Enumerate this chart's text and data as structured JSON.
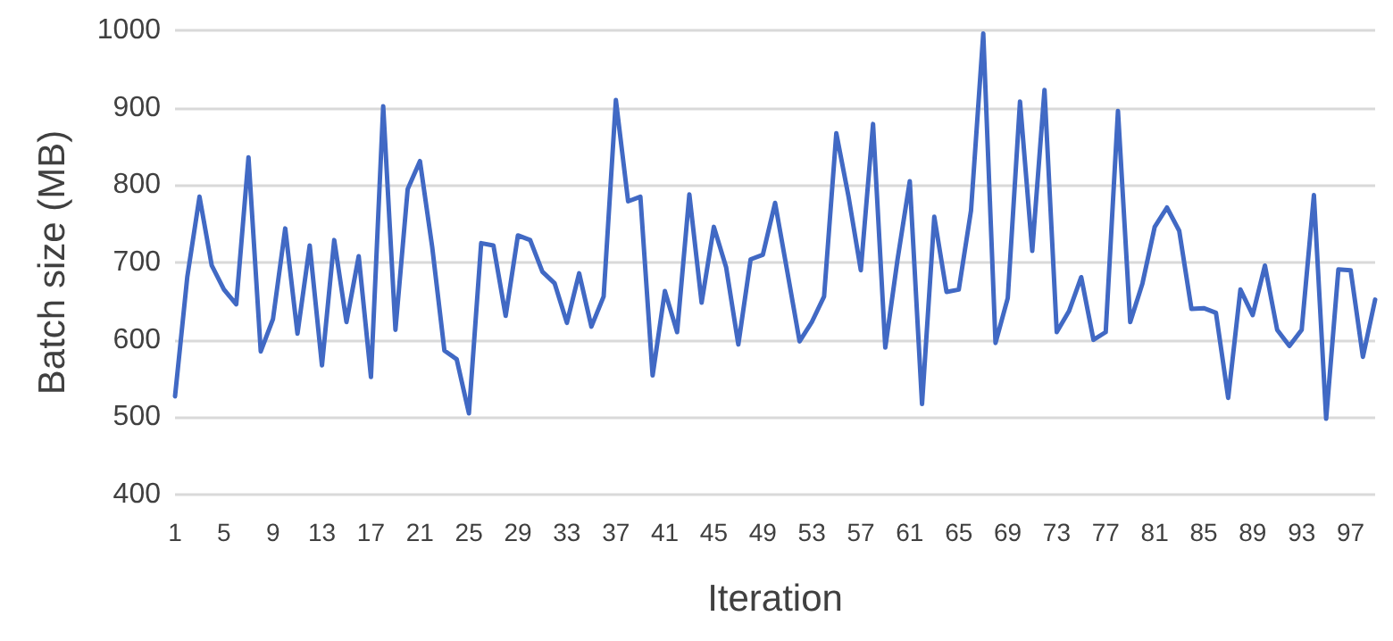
{
  "chart_data": {
    "type": "line",
    "xlabel": "Iteration",
    "ylabel": "Batch size (MB)",
    "categories": [
      "1",
      null,
      null,
      null,
      "5",
      null,
      null,
      null,
      "9",
      null,
      null,
      null,
      "13",
      null,
      null,
      null,
      "17",
      null,
      null,
      null,
      "21",
      null,
      null,
      null,
      "25",
      null,
      null,
      null,
      "29",
      null,
      null,
      null,
      "33",
      null,
      null,
      null,
      "37",
      null,
      null,
      null,
      "41",
      null,
      null,
      null,
      "45",
      null,
      null,
      null,
      "49",
      null,
      null,
      null,
      "53",
      null,
      null,
      null,
      "57",
      null,
      null,
      null,
      "61",
      null,
      null,
      null,
      "65",
      null,
      null,
      null,
      "69",
      null,
      null,
      null,
      "73",
      null,
      null,
      null,
      "77",
      null,
      null,
      null,
      "81",
      null,
      null,
      null,
      "85",
      null,
      null,
      null,
      "89",
      null,
      null,
      null,
      "93",
      null,
      null,
      null,
      "97",
      null,
      null
    ],
    "series": [
      {
        "color": "#4169c4",
        "values": [
          527,
          681,
          785,
          696,
          665,
          646,
          836,
          585,
          627,
          744,
          608,
          722,
          567,
          729,
          623,
          708,
          552,
          902,
          613,
          795,
          831,
          720,
          586,
          575,
          505,
          725,
          722,
          631,
          735,
          729,
          688,
          673,
          622,
          686,
          617,
          656,
          910,
          779,
          785,
          554,
          663,
          610,
          788,
          648,
          746,
          694,
          594,
          704,
          710,
          777,
          688,
          598,
          623,
          656,
          867,
          785,
          690,
          879,
          590,
          704,
          805,
          517,
          759,
          662,
          665,
          767,
          996,
          596,
          654,
          908,
          715,
          923,
          610,
          637,
          681,
          600,
          610,
          896,
          623,
          673,
          746,
          771,
          741,
          640,
          641,
          635,
          525,
          665,
          632,
          696,
          613,
          592,
          613,
          787,
          498,
          691,
          690,
          578,
          652
        ]
      }
    ],
    "ylim": [
      400,
      1000
    ],
    "yticks": [
      400,
      500,
      600,
      700,
      800,
      900,
      1000
    ],
    "grid": "y",
    "marker": "none",
    "line_style": "solid"
  }
}
